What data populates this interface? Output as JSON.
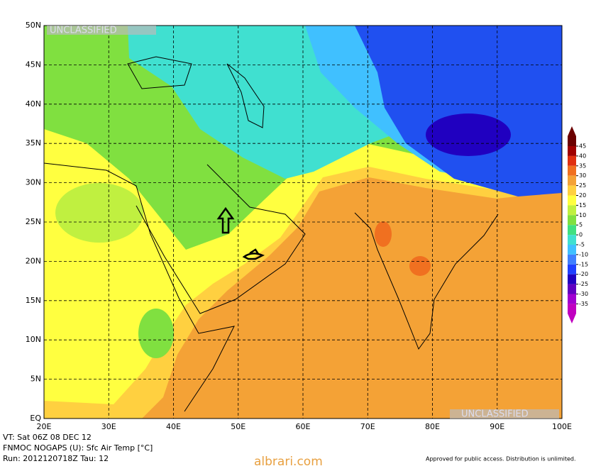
{
  "map": {
    "top_label": "UNCLASSIFIED",
    "bottom_label": "UNCLASSIFIED",
    "lat_labels": [
      {
        "value": 50,
        "label": "50N"
      },
      {
        "value": 45,
        "label": "45N"
      },
      {
        "value": 40,
        "label": "40N"
      },
      {
        "value": 35,
        "label": "35N"
      },
      {
        "value": 30,
        "label": "30N"
      },
      {
        "value": 25,
        "label": "25N"
      },
      {
        "value": 20,
        "label": "20N"
      },
      {
        "value": 15,
        "label": "15N"
      },
      {
        "value": 10,
        "label": "10N"
      },
      {
        "value": 5,
        "label": "5N"
      },
      {
        "value": 0,
        "label": "EQ"
      }
    ],
    "lon_labels": [
      {
        "value": 20,
        "label": "20E"
      },
      {
        "value": 30,
        "label": "30E"
      },
      {
        "value": 40,
        "label": "40E"
      },
      {
        "value": 50,
        "label": "50E"
      },
      {
        "value": 60,
        "label": "60E"
      },
      {
        "value": 70,
        "label": "70E"
      },
      {
        "value": 80,
        "label": "80E"
      },
      {
        "value": 90,
        "label": "90E"
      },
      {
        "value": 100,
        "label": "100E"
      }
    ],
    "colorbar": {
      "ticks": [
        45,
        40,
        35,
        30,
        25,
        20,
        15,
        10,
        5,
        0,
        -5,
        -10,
        -15,
        -20,
        -25,
        -30,
        -35
      ],
      "colors": [
        "#6b0000",
        "#a00000",
        "#e03010",
        "#f07020",
        "#f4a236",
        "#ffd040",
        "#ffff40",
        "#c0f040",
        "#80e040",
        "#40e080",
        "#40e0d0",
        "#40c0ff",
        "#4080ff",
        "#2040ff",
        "#2000c0",
        "#6000c0",
        "#a000d0",
        "#c000c0"
      ]
    }
  },
  "footer": {
    "valid_time": "VT: Sat 06Z 08 DEC 12",
    "product": "FNMOC NOGAPS (U): Sfc Air Temp [°C]",
    "run": "Run: 2012120718Z Tau: 12",
    "approval": "Approved for public access. Distribution is unlimited.",
    "watermark": "albrari.com"
  }
}
